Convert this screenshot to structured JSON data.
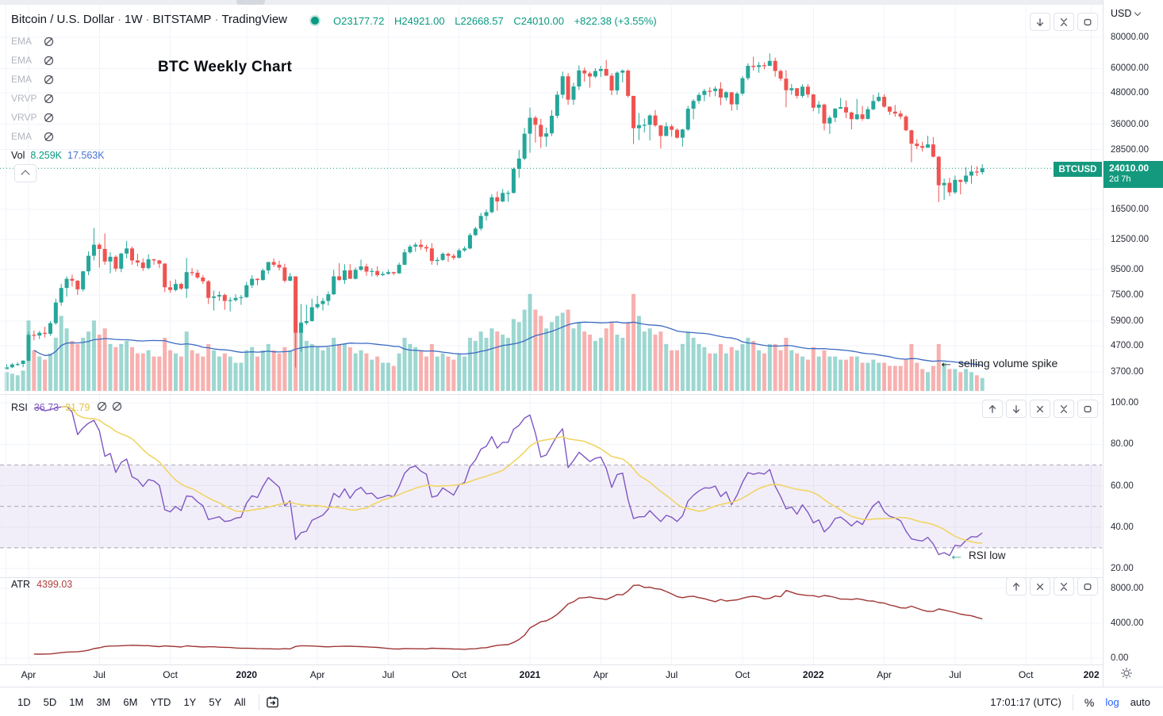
{
  "header": {
    "symbol_title": "Bitcoin / U.S. Dollar",
    "interval": "1W",
    "exchange": "BITSTAMP",
    "platform": "TradingView",
    "ohlc": {
      "o_label": "O",
      "o": "23177.72",
      "h_label": "H",
      "h": "24921.00",
      "l_label": "L",
      "l": "22668.57",
      "c_label": "C",
      "c": "24010.00",
      "change": "+822.38 (+3.55%)"
    }
  },
  "legend": {
    "indicators": [
      {
        "label": "EMA"
      },
      {
        "label": "EMA"
      },
      {
        "label": "EMA"
      },
      {
        "label": "VRVP"
      },
      {
        "label": "VRVP"
      },
      {
        "label": "EMA"
      }
    ],
    "volume": {
      "label": "Vol",
      "value": "8.259K",
      "ma_value": "17.563K"
    }
  },
  "annotations": {
    "chart_title": "BTC Weekly Chart",
    "volume_note": {
      "arrow": "←",
      "text": "selling volume spike"
    },
    "rsi_note": {
      "arrow": "←",
      "text": "RSI low"
    }
  },
  "price_axis": {
    "currency": "USD",
    "badge": {
      "symbol": "BTCUSD",
      "price": "24010.00",
      "countdown": "2d 7h"
    }
  },
  "panes": {
    "main": {
      "buttons": [
        "arrow-down-icon",
        "collapse-icon",
        "maximize-icon"
      ]
    },
    "rsi": {
      "label": "RSI",
      "value": "36.73",
      "ma_value": "31.79",
      "buttons": [
        "arrow-up-icon",
        "arrow-down-icon",
        "close-icon",
        "collapse-icon",
        "maximize-icon"
      ]
    },
    "atr": {
      "label": "ATR",
      "value": "4399.03",
      "buttons": [
        "arrow-up-icon",
        "close-icon",
        "collapse-icon",
        "maximize-icon"
      ]
    }
  },
  "toolbar": {
    "ranges": [
      "1D",
      "5D",
      "1M",
      "3M",
      "6M",
      "YTD",
      "1Y",
      "5Y",
      "All"
    ],
    "goto_icon": "calendar-go-to-date-icon",
    "clock": "17:01:17 (UTC)",
    "percent": "%",
    "log": "log",
    "auto": "auto"
  },
  "colors": {
    "accent_teal": "#089981",
    "candle_up": "#26a69a",
    "candle_down": "#ef5350",
    "vol_up": "rgba(38,166,154,0.45)",
    "vol_down": "rgba(239,83,80,0.45)",
    "vol_ma_line": "#3b6ac2",
    "rsi_line": "#7e57c2",
    "rsi_ma_line": "#f0d564",
    "rsi_band_fill": "rgba(126,87,194,0.10)",
    "band_dash": "#a6a9b3",
    "atr_line": "#9f3533",
    "atr_value_text": "#b0413e",
    "grid": "#f0f3fa",
    "muted_text": "#787b86",
    "legend_gray": "#b2b5be",
    "log_active": "#2962ff"
  },
  "chart_data": {
    "type": "candlestick",
    "symbol": "BTCUSD",
    "interval": "1W",
    "scale": "log",
    "start_week": "2019-03-04",
    "step_days": 7,
    "current_price_line": 24010,
    "last_bar": {
      "open": 23177.72,
      "high": 24921.0,
      "low": 22668.57,
      "close": 24010.0
    },
    "price_axis_ticks": [
      80000,
      60000,
      48000,
      36000,
      28500,
      16500,
      12500,
      9500,
      7500,
      5900,
      4700,
      3700
    ],
    "rsi_ticks": [
      100,
      80,
      60,
      40,
      20
    ],
    "rsi_band": [
      70,
      50,
      30
    ],
    "atr_ticks": [
      8000,
      4000,
      0
    ],
    "time_labels": [
      [
        "Apr",
        4
      ],
      [
        "Jul",
        17
      ],
      [
        "Oct",
        30
      ],
      [
        "2020",
        44
      ],
      [
        "Apr",
        57
      ],
      [
        "Jul",
        70
      ],
      [
        "Oct",
        83
      ],
      [
        "2021",
        96
      ],
      [
        "Apr",
        109
      ],
      [
        "Jul",
        122
      ],
      [
        "Oct",
        135
      ],
      [
        "2022",
        148
      ],
      [
        "Apr",
        161
      ],
      [
        "Jul",
        174
      ],
      [
        "Oct",
        187
      ],
      [
        "202",
        199
      ]
    ],
    "indicators": {
      "rsi_period": 14,
      "rsi_ma_period": 14,
      "atr_period": 14,
      "vol_ma_period": 20,
      "rsi_current": 36.73,
      "rsi_ma_current": 31.79,
      "atr_current": 4399.03,
      "vol_current_k": 8.259,
      "vol_ma_current_k": 17.563
    },
    "hlc": [
      [
        3970,
        3780,
        3860
      ],
      [
        4010,
        3830,
        3960
      ],
      [
        4040,
        3900,
        3980
      ],
      [
        4120,
        3860,
        4100
      ],
      [
        5345,
        4080,
        5200
      ],
      [
        5410,
        4950,
        5165
      ],
      [
        5390,
        5000,
        5300
      ],
      [
        5600,
        5080,
        5250
      ],
      [
        5900,
        5150,
        5790
      ],
      [
        7250,
        5700,
        7000
      ],
      [
        8300,
        6800,
        8000
      ],
      [
        8900,
        7400,
        8700
      ],
      [
        9050,
        8100,
        8550
      ],
      [
        8600,
        7500,
        7900
      ],
      [
        9350,
        7750,
        9320
      ],
      [
        11200,
        9000,
        10750
      ],
      [
        13880,
        10300,
        11900
      ],
      [
        12100,
        9650,
        11450
      ],
      [
        13200,
        9900,
        10200
      ],
      [
        11100,
        9150,
        10650
      ],
      [
        10800,
        9300,
        9550
      ],
      [
        11050,
        9250,
        10970
      ],
      [
        12320,
        10500,
        11500
      ],
      [
        11700,
        9900,
        10300
      ],
      [
        10950,
        9750,
        10100
      ],
      [
        10500,
        9350,
        9600
      ],
      [
        10900,
        9500,
        10400
      ],
      [
        10460,
        9900,
        10300
      ],
      [
        10350,
        9600,
        10000
      ],
      [
        10050,
        7700,
        8050
      ],
      [
        8540,
        7650,
        7850
      ],
      [
        8650,
        7750,
        8300
      ],
      [
        8400,
        7850,
        7950
      ],
      [
        10540,
        7300,
        9250
      ],
      [
        9600,
        8950,
        9200
      ],
      [
        9460,
        8700,
        8800
      ],
      [
        9000,
        8300,
        8500
      ],
      [
        8600,
        6900,
        7300
      ],
      [
        7800,
        6500,
        7400
      ],
      [
        7750,
        7100,
        7500
      ],
      [
        7600,
        6550,
        7100
      ],
      [
        7350,
        6450,
        7150
      ],
      [
        7550,
        7050,
        7300
      ],
      [
        7500,
        6850,
        7350
      ],
      [
        8450,
        7300,
        8200
      ],
      [
        9000,
        8000,
        8700
      ],
      [
        8750,
        8200,
        8600
      ],
      [
        9550,
        8570,
        9400
      ],
      [
        10150,
        9100,
        10150
      ],
      [
        10500,
        9700,
        9900
      ],
      [
        10280,
        9400,
        9650
      ],
      [
        9990,
        8400,
        8550
      ],
      [
        9180,
        8500,
        8900
      ],
      [
        8900,
        3850,
        5300
      ],
      [
        6900,
        4450,
        5800
      ],
      [
        6850,
        5700,
        5900
      ],
      [
        7250,
        5880,
        6700
      ],
      [
        7450,
        6600,
        6900
      ],
      [
        7300,
        6500,
        7100
      ],
      [
        7750,
        6800,
        7550
      ],
      [
        9450,
        7500,
        8900
      ],
      [
        10050,
        8550,
        8600
      ],
      [
        9950,
        8300,
        9400
      ],
      [
        9950,
        8700,
        8700
      ],
      [
        9650,
        8650,
        9450
      ],
      [
        10380,
        9350,
        9750
      ],
      [
        9990,
        8950,
        9300
      ],
      [
        9590,
        8900,
        9350
      ],
      [
        9750,
        8850,
        9000
      ],
      [
        9300,
        8930,
        9100
      ],
      [
        9470,
        9050,
        9250
      ],
      [
        9280,
        9000,
        9150
      ],
      [
        10100,
        9100,
        9900
      ],
      [
        11450,
        9850,
        11100
      ],
      [
        11900,
        10950,
        11700
      ],
      [
        12150,
        11150,
        11900
      ],
      [
        12480,
        11350,
        11650
      ],
      [
        11880,
        11150,
        11500
      ],
      [
        12080,
        9900,
        10250
      ],
      [
        10600,
        9850,
        10350
      ],
      [
        11100,
        10250,
        10950
      ],
      [
        11080,
        10150,
        10750
      ],
      [
        10950,
        10350,
        10550
      ],
      [
        11500,
        10500,
        11300
      ],
      [
        11730,
        11150,
        11500
      ],
      [
        13250,
        11400,
        13000
      ],
      [
        14050,
        12900,
        13800
      ],
      [
        15950,
        13550,
        15500
      ],
      [
        16450,
        14850,
        16050
      ],
      [
        18950,
        15850,
        18400
      ],
      [
        19400,
        16250,
        17700
      ],
      [
        19850,
        17600,
        19150
      ],
      [
        19550,
        17650,
        19150
      ],
      [
        24200,
        19050,
        23900
      ],
      [
        28400,
        22000,
        26250
      ],
      [
        34800,
        25850,
        33000
      ],
      [
        41950,
        27700,
        38200
      ],
      [
        38850,
        30400,
        35800
      ],
      [
        37850,
        28950,
        32100
      ],
      [
        34900,
        29250,
        33100
      ],
      [
        40950,
        32300,
        38900
      ],
      [
        48700,
        38050,
        47200
      ],
      [
        58350,
        45600,
        55900
      ],
      [
        57550,
        43000,
        45100
      ],
      [
        52700,
        43000,
        50900
      ],
      [
        61800,
        49300,
        59000
      ],
      [
        60600,
        53250,
        57400
      ],
      [
        58400,
        50300,
        55800
      ],
      [
        60250,
        55000,
        58700
      ],
      [
        61500,
        55500,
        59800
      ],
      [
        64900,
        59600,
        56200
      ],
      [
        57500,
        47050,
        49100
      ],
      [
        58500,
        47150,
        57800
      ],
      [
        59600,
        52900,
        58900
      ],
      [
        59500,
        46000,
        46700
      ],
      [
        46700,
        30000,
        34700
      ],
      [
        39900,
        31100,
        35700
      ],
      [
        37900,
        33350,
        35800
      ],
      [
        39450,
        31000,
        39000
      ],
      [
        41000,
        35150,
        35600
      ],
      [
        35750,
        28800,
        32300
      ],
      [
        36600,
        32700,
        35300
      ],
      [
        35950,
        32100,
        34200
      ],
      [
        34650,
        31550,
        31800
      ],
      [
        34500,
        29300,
        34300
      ],
      [
        42600,
        33850,
        41500
      ],
      [
        45350,
        37650,
        44600
      ],
      [
        48150,
        43450,
        47100
      ],
      [
        49800,
        44450,
        48900
      ],
      [
        50500,
        46350,
        48800
      ],
      [
        51000,
        46550,
        49900
      ],
      [
        52950,
        42850,
        46000
      ],
      [
        48850,
        44750,
        48300
      ],
      [
        47350,
        40750,
        43200
      ],
      [
        48500,
        41000,
        47700
      ],
      [
        56100,
        46900,
        54950
      ],
      [
        62950,
        53900,
        61550
      ],
      [
        66950,
        58900,
        60900
      ],
      [
        63700,
        57750,
        61900
      ],
      [
        63550,
        59550,
        61500
      ],
      [
        69000,
        62300,
        64400
      ],
      [
        66350,
        55650,
        58700
      ],
      [
        59500,
        53550,
        54700
      ],
      [
        59150,
        42050,
        49200
      ],
      [
        52100,
        47150,
        50100
      ],
      [
        50250,
        45550,
        46700
      ],
      [
        51950,
        45950,
        50800
      ],
      [
        52050,
        45900,
        47300
      ],
      [
        47600,
        40550,
        41900
      ],
      [
        44500,
        39650,
        43100
      ],
      [
        43500,
        34000,
        36250
      ],
      [
        38950,
        32950,
        38200
      ],
      [
        41750,
        36650,
        41500
      ],
      [
        45850,
        41650,
        42100
      ],
      [
        44750,
        38050,
        40100
      ],
      [
        40450,
        34300,
        37700
      ],
      [
        45400,
        37450,
        39400
      ],
      [
        42550,
        37150,
        37800
      ],
      [
        42350,
        37600,
        41300
      ],
      [
        47200,
        40900,
        44550
      ],
      [
        48200,
        44200,
        46300
      ],
      [
        47450,
        41850,
        42300
      ],
      [
        42400,
        39200,
        40400
      ],
      [
        42950,
        38550,
        39700
      ],
      [
        40800,
        37700,
        38600
      ],
      [
        39150,
        33750,
        34050
      ],
      [
        34200,
        25400,
        30100
      ],
      [
        31400,
        28650,
        29450
      ],
      [
        30650,
        28000,
        29000
      ],
      [
        32350,
        29300,
        29900
      ],
      [
        31950,
        26550,
        26700
      ],
      [
        26900,
        17600,
        20550
      ],
      [
        21850,
        17950,
        21000
      ],
      [
        22000,
        18600,
        19250
      ],
      [
        22450,
        18950,
        21600
      ],
      [
        21600,
        18900,
        21200
      ],
      [
        24250,
        20750,
        22450
      ],
      [
        24650,
        20850,
        23300
      ],
      [
        24450,
        22350,
        23175
      ],
      [
        24921,
        22668.57,
        24010
      ]
    ],
    "volumes_k": [
      12,
      11,
      10,
      13,
      45,
      26,
      22,
      20,
      24,
      34,
      48,
      40,
      32,
      30,
      34,
      38,
      45,
      36,
      40,
      30,
      28,
      30,
      32,
      28,
      24,
      24,
      26,
      22,
      22,
      34,
      26,
      24,
      22,
      38,
      26,
      24,
      22,
      30,
      26,
      22,
      24,
      22,
      18,
      18,
      26,
      28,
      22,
      26,
      30,
      26,
      24,
      28,
      26,
      66,
      44,
      32,
      30,
      28,
      26,
      28,
      34,
      30,
      30,
      28,
      24,
      26,
      24,
      20,
      22,
      18,
      18,
      16,
      24,
      34,
      30,
      28,
      26,
      22,
      30,
      22,
      24,
      22,
      20,
      24,
      22,
      34,
      32,
      38,
      34,
      40,
      38,
      36,
      34,
      46,
      44,
      52,
      62,
      52,
      48,
      40,
      44,
      48,
      50,
      52,
      40,
      44,
      38,
      36,
      32,
      34,
      40,
      44,
      36,
      34,
      44,
      62,
      48,
      38,
      40,
      36,
      38,
      30,
      26,
      26,
      30,
      38,
      34,
      30,
      28,
      24,
      24,
      30,
      24,
      28,
      26,
      30,
      34,
      32,
      26,
      24,
      30,
      30,
      26,
      34,
      26,
      24,
      22,
      20,
      28,
      22,
      26,
      22,
      22,
      20,
      20,
      22,
      22,
      18,
      18,
      20,
      18,
      18,
      16,
      16,
      16,
      20,
      30,
      18,
      14,
      12,
      16,
      30,
      18,
      14,
      14,
      12,
      14,
      12,
      10,
      8.259
    ]
  }
}
